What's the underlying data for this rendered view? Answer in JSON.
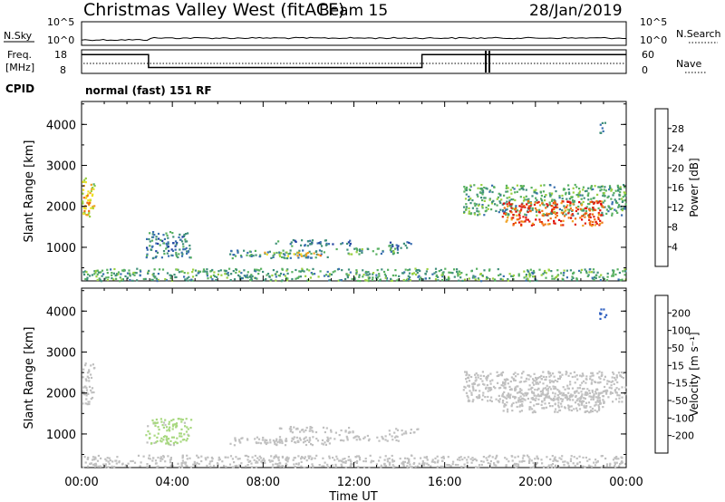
{
  "header": {
    "station": "Christmas Valley West (fitACF)",
    "beam": "Beam 15",
    "date": "28/Jan/2019"
  },
  "strips": {
    "noise": {
      "left_label": "N.Sky",
      "left_ticks": [
        "10^5",
        "10^0"
      ],
      "right_ticks": [
        "10^5",
        "10^0"
      ],
      "right_label": "N.Search"
    },
    "freq": {
      "left_label_1": "Freq.",
      "left_label_2": "[MHz]",
      "left_ticks": [
        "18",
        "8"
      ],
      "right_ticks": [
        "60",
        "0"
      ],
      "right_label": "Nave"
    },
    "cpid": {
      "label": "CPID",
      "text": "normal (fast) 151 RF"
    }
  },
  "colors": {
    "power_scale": [
      "#0010e0",
      "#2040a0",
      "#3a6fb0",
      "#3f8f7a",
      "#58b060",
      "#9ad040",
      "#f0e020",
      "#f0a020",
      "#f07010",
      "#e02010",
      "#e00000"
    ],
    "velocity_scale": [
      "#1030c0",
      "#3060c0",
      "#2a7a3a",
      "#60c040",
      "#a8d880",
      "#c0c0c0",
      "#c0c0c0",
      "#f0c020",
      "#f08010",
      "#f05010",
      "#e00000"
    ]
  },
  "chart_data": [
    {
      "type": "heatmap",
      "name": "power",
      "ylabel": "Slant Range [km]",
      "yticks": [
        "1000",
        "2000",
        "3000",
        "4000"
      ],
      "ylim": [
        180,
        4560
      ],
      "xlim": [
        0,
        24
      ],
      "colorbar": {
        "label": "Power [dB]",
        "ticks": [
          "4",
          "8",
          "12",
          "16",
          "20",
          "24",
          "28"
        ],
        "range": [
          0,
          32
        ]
      },
      "regions": [
        {
          "t": [
            0.0,
            0.55
          ],
          "r": [
            1750,
            2750
          ],
          "value": 18
        },
        {
          "t": [
            0.05,
            0.45
          ],
          "r": [
            1900,
            2300
          ],
          "value": 22
        },
        {
          "t": [
            2.8,
            4.8
          ],
          "r": [
            750,
            1400
          ],
          "value": 9
        },
        {
          "t": [
            6.5,
            11.0
          ],
          "r": [
            750,
            950
          ],
          "value": 10
        },
        {
          "t": [
            8.0,
            10.5
          ],
          "r": [
            800,
            900
          ],
          "value": 20
        },
        {
          "t": [
            8.5,
            12.0
          ],
          "r": [
            1050,
            1200
          ],
          "value": 8
        },
        {
          "t": [
            11.0,
            14.0
          ],
          "r": [
            850,
            1000
          ],
          "value": 12
        },
        {
          "t": [
            13.5,
            14.8
          ],
          "r": [
            1000,
            1150
          ],
          "value": 8
        },
        {
          "t": [
            16.8,
            24.0
          ],
          "r": [
            1800,
            2550
          ],
          "value": 12
        },
        {
          "t": [
            18.5,
            23.0
          ],
          "r": [
            1550,
            2150
          ],
          "value": 26
        },
        {
          "t": [
            22.8,
            23.1
          ],
          "r": [
            3800,
            4100
          ],
          "value": 10
        },
        {
          "t": [
            0.0,
            24.0
          ],
          "r": [
            200,
            500
          ],
          "value": 12
        }
      ]
    },
    {
      "type": "heatmap",
      "name": "velocity",
      "xlabel": "Time UT",
      "xticks": [
        "00:00",
        "04:00",
        "08:00",
        "12:00",
        "16:00",
        "20:00",
        "00:00"
      ],
      "ylabel": "Slant Range [km]",
      "yticks": [
        "1000",
        "2000",
        "3000",
        "4000"
      ],
      "ylim": [
        180,
        4560
      ],
      "xlim": [
        0,
        24
      ],
      "colorbar": {
        "label": "Velocity [m s⁻¹]",
        "ticks": [
          "200",
          "100",
          "50",
          "15",
          "-15",
          "-50",
          "-100",
          "-200"
        ],
        "range": [
          -250,
          250
        ]
      },
      "regions": [
        {
          "t": [
            0.0,
            0.55
          ],
          "r": [
            1750,
            2750
          ],
          "value": 0
        },
        {
          "t": [
            2.8,
            4.8
          ],
          "r": [
            750,
            1400
          ],
          "value": 40
        },
        {
          "t": [
            6.5,
            11.0
          ],
          "r": [
            750,
            950
          ],
          "value": -40
        },
        {
          "t": [
            8.0,
            10.5
          ],
          "r": [
            800,
            900
          ],
          "value": 0
        },
        {
          "t": [
            8.5,
            12.0
          ],
          "r": [
            1050,
            1200
          ],
          "value": -30
        },
        {
          "t": [
            11.0,
            14.0
          ],
          "r": [
            850,
            1000
          ],
          "value": -40
        },
        {
          "t": [
            13.5,
            14.8
          ],
          "r": [
            1000,
            1150
          ],
          "value": -40
        },
        {
          "t": [
            16.8,
            24.0
          ],
          "r": [
            1800,
            2550
          ],
          "value": 0
        },
        {
          "t": [
            18.5,
            23.0
          ],
          "r": [
            1550,
            2150
          ],
          "value": 0
        },
        {
          "t": [
            22.8,
            23.1
          ],
          "r": [
            3800,
            4100
          ],
          "value": 180
        },
        {
          "t": [
            0.0,
            24.0
          ],
          "r": [
            200,
            500
          ],
          "value": -30
        }
      ]
    }
  ],
  "freq_series": {
    "time": [
      0,
      2.95,
      2.95,
      15.0,
      15.0,
      24.0
    ],
    "mhz": [
      16.0,
      16.0,
      10.5,
      10.5,
      16.0,
      16.0
    ]
  }
}
